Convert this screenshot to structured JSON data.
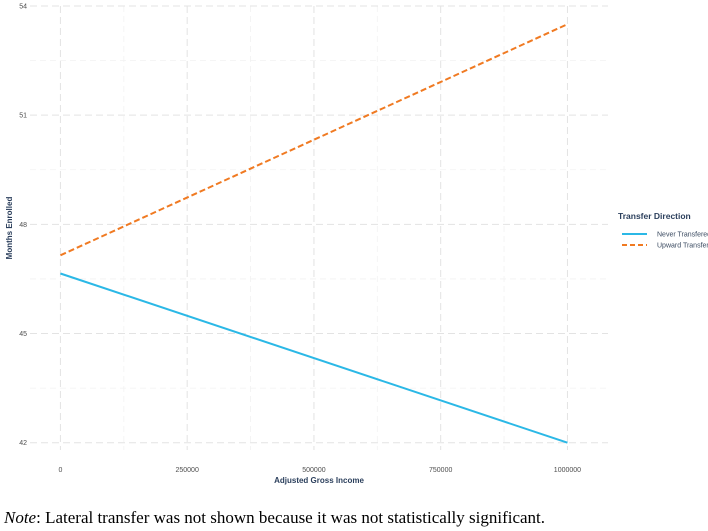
{
  "chart_data": {
    "type": "line",
    "xlabel": "Adjusted Gross Income",
    "ylabel": "Months Enrolled",
    "xlim": [
      -60000,
      1080000
    ],
    "ylim": [
      41.8,
      54
    ],
    "x_ticks": [
      0,
      250000,
      500000,
      750000,
      1000000
    ],
    "x_tick_labels": [
      "0",
      "250000",
      "500000",
      "750000",
      "1000000"
    ],
    "y_ticks": [
      42,
      45,
      48,
      51,
      54
    ],
    "y_tick_labels": [
      "42",
      "45",
      "48",
      "51",
      "54"
    ],
    "grid": true,
    "legend": {
      "title": "Transfer Direction",
      "placement": "right"
    },
    "series": [
      {
        "name": "Never Transfered",
        "x": [
          0,
          1000000
        ],
        "y": [
          46.65,
          42.0
        ],
        "color": "#2bb8e6",
        "dash": "solid"
      },
      {
        "name": "Upward Transfer",
        "x": [
          0,
          1000000
        ],
        "y": [
          47.15,
          53.5
        ],
        "color": "#f07a22",
        "dash": "dashed"
      }
    ]
  },
  "note": {
    "prefix": "Note",
    "text": ": Lateral transfer was not shown because it was not statistically significant."
  }
}
